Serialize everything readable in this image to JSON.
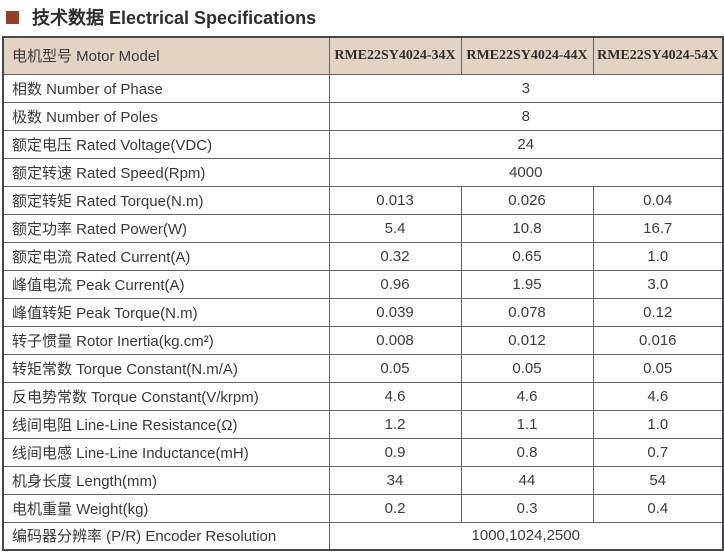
{
  "title": {
    "text": "技术数据 Electrical Specifications",
    "bullet_color": "#963f25"
  },
  "table": {
    "header": {
      "label": "电机型号 Motor Model",
      "models": [
        "RME22SY4024-34X",
        "RME22SY4024-44X",
        "RME22SY4024-54X"
      ]
    },
    "header_bg": "#e2d3c3",
    "rows": [
      {
        "label": "相数 Number of Phase",
        "span": "3"
      },
      {
        "label": "极数 Number of Poles",
        "span": "8"
      },
      {
        "label": "额定电压 Rated Voltage(VDC)",
        "span": "24"
      },
      {
        "label": "额定转速 Rated Speed(Rpm)",
        "span": "4000"
      },
      {
        "label": "额定转矩 Rated Torque(N.m)",
        "values": [
          "0.013",
          "0.026",
          "0.04"
        ]
      },
      {
        "label": "额定功率 Rated Power(W)",
        "values": [
          "5.4",
          "10.8",
          "16.7"
        ]
      },
      {
        "label": "额定电流 Rated Current(A)",
        "values": [
          "0.32",
          "0.65",
          "1.0"
        ]
      },
      {
        "label": "峰值电流 Peak Current(A)",
        "values": [
          "0.96",
          "1.95",
          "3.0"
        ]
      },
      {
        "label": "峰值转矩 Peak Torque(N.m)",
        "values": [
          "0.039",
          "0.078",
          "0.12"
        ]
      },
      {
        "label": "转子惯量 Rotor Inertia(kg.cm²)",
        "values": [
          "0.008",
          "0.012",
          "0.016"
        ]
      },
      {
        "label": "转矩常数 Torque Constant(N.m/A)",
        "values": [
          "0.05",
          "0.05",
          "0.05"
        ]
      },
      {
        "label": "反电势常数 Torque Constant(V/krpm)",
        "values": [
          "4.6",
          "4.6",
          "4.6"
        ]
      },
      {
        "label": "线间电阻 Line-Line Resistance(Ω)",
        "values": [
          "1.2",
          "1.1",
          "1.0"
        ]
      },
      {
        "label": "线间电感 Line-Line Inductance(mH)",
        "values": [
          "0.9",
          "0.8",
          "0.7"
        ]
      },
      {
        "label": "机身长度 Length(mm)",
        "values": [
          "34",
          "44",
          "54"
        ]
      },
      {
        "label": "电机重量 Weight(kg)",
        "values": [
          "0.2",
          "0.3",
          "0.4"
        ]
      },
      {
        "label": "编码器分辨率 (P/R) Encoder Resolution",
        "span": "1000,1024,2500"
      }
    ]
  }
}
